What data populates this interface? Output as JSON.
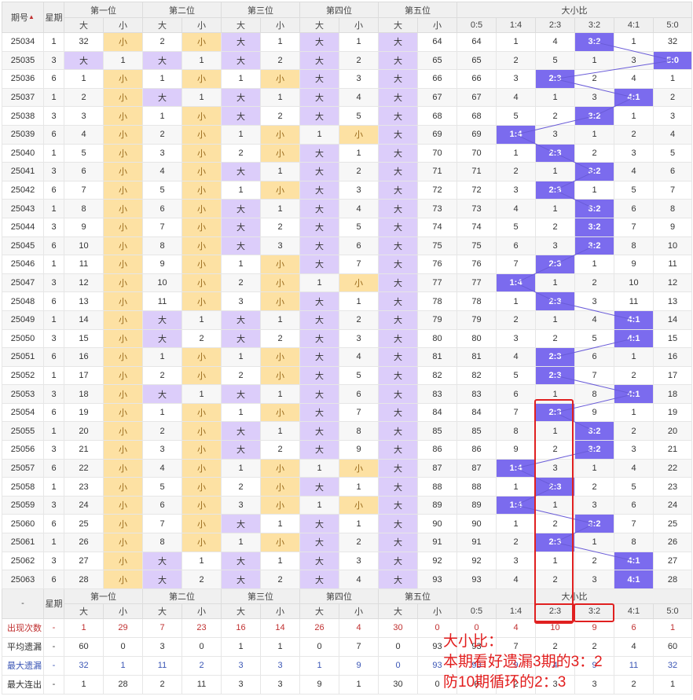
{
  "header": {
    "period": "期号",
    "weekday": "星期",
    "pos1": "第一位",
    "pos2": "第二位",
    "pos3": "第三位",
    "pos4": "第四位",
    "pos5": "第五位",
    "ratio": "大小比",
    "big": "大",
    "small": "小",
    "ratios": [
      "0:5",
      "1:4",
      "2:3",
      "3:2",
      "4:1",
      "5:0"
    ]
  },
  "rows": [
    {
      "p": "25034",
      "w": "1",
      "c": [
        {
          "big": "32",
          "small": "小"
        },
        {
          "big": "2",
          "small": "小"
        },
        {
          "big": "大",
          "small": "1"
        },
        {
          "big": "大",
          "small": "1"
        },
        {
          "big": "大",
          "small": "64"
        }
      ],
      "r": [
        "64",
        "1",
        "4",
        "3:2",
        "1",
        "32"
      ],
      "hit": 3
    },
    {
      "p": "25035",
      "w": "3",
      "c": [
        {
          "big": "大",
          "small": "1"
        },
        {
          "big": "大",
          "small": "1"
        },
        {
          "big": "大",
          "small": "2"
        },
        {
          "big": "大",
          "small": "2"
        },
        {
          "big": "大",
          "small": "65"
        }
      ],
      "r": [
        "65",
        "2",
        "5",
        "1",
        "3",
        "5:0"
      ],
      "hit": 5
    },
    {
      "p": "25036",
      "w": "6",
      "c": [
        {
          "big": "1",
          "small": "小"
        },
        {
          "big": "1",
          "small": "小"
        },
        {
          "big": "1",
          "small": "小"
        },
        {
          "big": "大",
          "small": "3"
        },
        {
          "big": "大",
          "small": "66"
        }
      ],
      "r": [
        "66",
        "3",
        "2:3",
        "2",
        "4",
        "1"
      ],
      "hit": 2
    },
    {
      "p": "25037",
      "w": "1",
      "c": [
        {
          "big": "2",
          "small": "小"
        },
        {
          "big": "大",
          "small": "1"
        },
        {
          "big": "大",
          "small": "1"
        },
        {
          "big": "大",
          "small": "4"
        },
        {
          "big": "大",
          "small": "67"
        }
      ],
      "r": [
        "67",
        "4",
        "1",
        "3",
        "4:1",
        "2"
      ],
      "hit": 4
    },
    {
      "p": "25038",
      "w": "3",
      "c": [
        {
          "big": "3",
          "small": "小"
        },
        {
          "big": "1",
          "small": "小"
        },
        {
          "big": "大",
          "small": "2"
        },
        {
          "big": "大",
          "small": "5"
        },
        {
          "big": "大",
          "small": "68"
        }
      ],
      "r": [
        "68",
        "5",
        "2",
        "3:2",
        "1",
        "3"
      ],
      "hit": 3
    },
    {
      "p": "25039",
      "w": "6",
      "c": [
        {
          "big": "4",
          "small": "小"
        },
        {
          "big": "2",
          "small": "小"
        },
        {
          "big": "1",
          "small": "小"
        },
        {
          "big": "1",
          "small": "小"
        },
        {
          "big": "大",
          "small": "69"
        }
      ],
      "r": [
        "69",
        "1:4",
        "3",
        "1",
        "2",
        "4"
      ],
      "hit": 1
    },
    {
      "p": "25040",
      "w": "1",
      "c": [
        {
          "big": "5",
          "small": "小"
        },
        {
          "big": "3",
          "small": "小"
        },
        {
          "big": "2",
          "small": "小"
        },
        {
          "big": "大",
          "small": "1"
        },
        {
          "big": "大",
          "small": "70"
        }
      ],
      "r": [
        "70",
        "1",
        "2:3",
        "2",
        "3",
        "5"
      ],
      "hit": 2
    },
    {
      "p": "25041",
      "w": "3",
      "c": [
        {
          "big": "6",
          "small": "小"
        },
        {
          "big": "4",
          "small": "小"
        },
        {
          "big": "大",
          "small": "1"
        },
        {
          "big": "大",
          "small": "2"
        },
        {
          "big": "大",
          "small": "71"
        }
      ],
      "r": [
        "71",
        "2",
        "1",
        "3:2",
        "4",
        "6"
      ],
      "hit": 3
    },
    {
      "p": "25042",
      "w": "6",
      "c": [
        {
          "big": "7",
          "small": "小"
        },
        {
          "big": "5",
          "small": "小"
        },
        {
          "big": "1",
          "small": "小"
        },
        {
          "big": "大",
          "small": "3"
        },
        {
          "big": "大",
          "small": "72"
        }
      ],
      "r": [
        "72",
        "3",
        "2:3",
        "1",
        "5",
        "7"
      ],
      "hit": 2
    },
    {
      "p": "25043",
      "w": "1",
      "c": [
        {
          "big": "8",
          "small": "小"
        },
        {
          "big": "6",
          "small": "小"
        },
        {
          "big": "大",
          "small": "1"
        },
        {
          "big": "大",
          "small": "4"
        },
        {
          "big": "大",
          "small": "73"
        }
      ],
      "r": [
        "73",
        "4",
        "1",
        "3:2",
        "6",
        "8"
      ],
      "hit": 3
    },
    {
      "p": "25044",
      "w": "3",
      "c": [
        {
          "big": "9",
          "small": "小"
        },
        {
          "big": "7",
          "small": "小"
        },
        {
          "big": "大",
          "small": "2"
        },
        {
          "big": "大",
          "small": "5"
        },
        {
          "big": "大",
          "small": "74"
        }
      ],
      "r": [
        "74",
        "5",
        "2",
        "3:2",
        "7",
        "9"
      ],
      "hit": 3
    },
    {
      "p": "25045",
      "w": "6",
      "c": [
        {
          "big": "10",
          "small": "小"
        },
        {
          "big": "8",
          "small": "小"
        },
        {
          "big": "大",
          "small": "3"
        },
        {
          "big": "大",
          "small": "6"
        },
        {
          "big": "大",
          "small": "75"
        }
      ],
      "r": [
        "75",
        "6",
        "3",
        "3:2",
        "8",
        "10"
      ],
      "hit": 3
    },
    {
      "p": "25046",
      "w": "1",
      "c": [
        {
          "big": "11",
          "small": "小"
        },
        {
          "big": "9",
          "small": "小"
        },
        {
          "big": "1",
          "small": "小"
        },
        {
          "big": "大",
          "small": "7"
        },
        {
          "big": "大",
          "small": "76"
        }
      ],
      "r": [
        "76",
        "7",
        "2:3",
        "1",
        "9",
        "11"
      ],
      "hit": 2
    },
    {
      "p": "25047",
      "w": "3",
      "c": [
        {
          "big": "12",
          "small": "小"
        },
        {
          "big": "10",
          "small": "小"
        },
        {
          "big": "2",
          "small": "小"
        },
        {
          "big": "1",
          "small": "小"
        },
        {
          "big": "大",
          "small": "77"
        }
      ],
      "r": [
        "77",
        "1:4",
        "1",
        "2",
        "10",
        "12"
      ],
      "hit": 1
    },
    {
      "p": "25048",
      "w": "6",
      "c": [
        {
          "big": "13",
          "small": "小"
        },
        {
          "big": "11",
          "small": "小"
        },
        {
          "big": "3",
          "small": "小"
        },
        {
          "big": "大",
          "small": "1"
        },
        {
          "big": "大",
          "small": "78"
        }
      ],
      "r": [
        "78",
        "1",
        "2:3",
        "3",
        "11",
        "13"
      ],
      "hit": 2
    },
    {
      "p": "25049",
      "w": "1",
      "c": [
        {
          "big": "14",
          "small": "小"
        },
        {
          "big": "大",
          "small": "1"
        },
        {
          "big": "大",
          "small": "1"
        },
        {
          "big": "大",
          "small": "2"
        },
        {
          "big": "大",
          "small": "79"
        }
      ],
      "r": [
        "79",
        "2",
        "1",
        "4",
        "4:1",
        "14"
      ],
      "hit": 4
    },
    {
      "p": "25050",
      "w": "3",
      "c": [
        {
          "big": "15",
          "small": "小"
        },
        {
          "big": "大",
          "small": "2"
        },
        {
          "big": "大",
          "small": "2"
        },
        {
          "big": "大",
          "small": "3"
        },
        {
          "big": "大",
          "small": "80"
        }
      ],
      "r": [
        "80",
        "3",
        "2",
        "5",
        "4:1",
        "15"
      ],
      "hit": 4
    },
    {
      "p": "25051",
      "w": "6",
      "c": [
        {
          "big": "16",
          "small": "小"
        },
        {
          "big": "1",
          "small": "小"
        },
        {
          "big": "1",
          "small": "小"
        },
        {
          "big": "大",
          "small": "4"
        },
        {
          "big": "大",
          "small": "81"
        }
      ],
      "r": [
        "81",
        "4",
        "2:3",
        "6",
        "1",
        "16"
      ],
      "hit": 2
    },
    {
      "p": "25052",
      "w": "1",
      "c": [
        {
          "big": "17",
          "small": "小"
        },
        {
          "big": "2",
          "small": "小"
        },
        {
          "big": "2",
          "small": "小"
        },
        {
          "big": "大",
          "small": "5"
        },
        {
          "big": "大",
          "small": "82"
        }
      ],
      "r": [
        "82",
        "5",
        "2:3",
        "7",
        "2",
        "17"
      ],
      "hit": 2
    },
    {
      "p": "25053",
      "w": "3",
      "c": [
        {
          "big": "18",
          "small": "小"
        },
        {
          "big": "大",
          "small": "1"
        },
        {
          "big": "大",
          "small": "1"
        },
        {
          "big": "大",
          "small": "6"
        },
        {
          "big": "大",
          "small": "83"
        }
      ],
      "r": [
        "83",
        "6",
        "1",
        "8",
        "4:1",
        "18"
      ],
      "hit": 4
    },
    {
      "p": "25054",
      "w": "6",
      "c": [
        {
          "big": "19",
          "small": "小"
        },
        {
          "big": "1",
          "small": "小"
        },
        {
          "big": "1",
          "small": "小"
        },
        {
          "big": "大",
          "small": "7"
        },
        {
          "big": "大",
          "small": "84"
        }
      ],
      "r": [
        "84",
        "7",
        "2:3",
        "9",
        "1",
        "19"
      ],
      "hit": 2
    },
    {
      "p": "25055",
      "w": "1",
      "c": [
        {
          "big": "20",
          "small": "小"
        },
        {
          "big": "2",
          "small": "小"
        },
        {
          "big": "大",
          "small": "1"
        },
        {
          "big": "大",
          "small": "8"
        },
        {
          "big": "大",
          "small": "85"
        }
      ],
      "r": [
        "85",
        "8",
        "1",
        "3:2",
        "2",
        "20"
      ],
      "hit": 3
    },
    {
      "p": "25056",
      "w": "3",
      "c": [
        {
          "big": "21",
          "small": "小"
        },
        {
          "big": "3",
          "small": "小"
        },
        {
          "big": "大",
          "small": "2"
        },
        {
          "big": "大",
          "small": "9"
        },
        {
          "big": "大",
          "small": "86"
        }
      ],
      "r": [
        "86",
        "9",
        "2",
        "3:2",
        "3",
        "21"
      ],
      "hit": 3
    },
    {
      "p": "25057",
      "w": "6",
      "c": [
        {
          "big": "22",
          "small": "小"
        },
        {
          "big": "4",
          "small": "小"
        },
        {
          "big": "1",
          "small": "小"
        },
        {
          "big": "1",
          "small": "小"
        },
        {
          "big": "大",
          "small": "87"
        }
      ],
      "r": [
        "87",
        "1:4",
        "3",
        "1",
        "4",
        "22"
      ],
      "hit": 1
    },
    {
      "p": "25058",
      "w": "1",
      "c": [
        {
          "big": "23",
          "small": "小"
        },
        {
          "big": "5",
          "small": "小"
        },
        {
          "big": "2",
          "small": "小"
        },
        {
          "big": "大",
          "small": "1"
        },
        {
          "big": "大",
          "small": "88"
        }
      ],
      "r": [
        "88",
        "1",
        "2:3",
        "2",
        "5",
        "23"
      ],
      "hit": 2
    },
    {
      "p": "25059",
      "w": "3",
      "c": [
        {
          "big": "24",
          "small": "小"
        },
        {
          "big": "6",
          "small": "小"
        },
        {
          "big": "3",
          "small": "小"
        },
        {
          "big": "1",
          "small": "小"
        },
        {
          "big": "大",
          "small": "89"
        }
      ],
      "r": [
        "89",
        "1:4",
        "1",
        "3",
        "6",
        "24"
      ],
      "hit": 1
    },
    {
      "p": "25060",
      "w": "6",
      "c": [
        {
          "big": "25",
          "small": "小"
        },
        {
          "big": "7",
          "small": "小"
        },
        {
          "big": "大",
          "small": "1"
        },
        {
          "big": "大",
          "small": "1"
        },
        {
          "big": "大",
          "small": "90"
        }
      ],
      "r": [
        "90",
        "1",
        "2",
        "3:2",
        "7",
        "25"
      ],
      "hit": 3
    },
    {
      "p": "25061",
      "w": "1",
      "c": [
        {
          "big": "26",
          "small": "小"
        },
        {
          "big": "8",
          "small": "小"
        },
        {
          "big": "1",
          "small": "小"
        },
        {
          "big": "大",
          "small": "2"
        },
        {
          "big": "大",
          "small": "91"
        }
      ],
      "r": [
        "91",
        "2",
        "2:3",
        "1",
        "8",
        "26"
      ],
      "hit": 2
    },
    {
      "p": "25062",
      "w": "3",
      "c": [
        {
          "big": "27",
          "small": "小"
        },
        {
          "big": "大",
          "small": "1"
        },
        {
          "big": "大",
          "small": "1"
        },
        {
          "big": "大",
          "small": "3"
        },
        {
          "big": "大",
          "small": "92"
        }
      ],
      "r": [
        "92",
        "3",
        "1",
        "2",
        "4:1",
        "27"
      ],
      "hit": 4
    },
    {
      "p": "25063",
      "w": "6",
      "c": [
        {
          "big": "28",
          "small": "小"
        },
        {
          "big": "大",
          "small": "2"
        },
        {
          "big": "大",
          "small": "2"
        },
        {
          "big": "大",
          "small": "4"
        },
        {
          "big": "大",
          "small": "93"
        }
      ],
      "r": [
        "93",
        "4",
        "2",
        "3",
        "4:1",
        "28"
      ],
      "hit": 4
    }
  ],
  "footer_dash": "-",
  "stats": [
    {
      "label": "出现次数",
      "cls": "lbl-red",
      "v": [
        "-",
        "1",
        "29",
        "7",
        "23",
        "16",
        "14",
        "26",
        "4",
        "30",
        "0",
        "0",
        "4",
        "10",
        "9",
        "6",
        "1"
      ]
    },
    {
      "label": "平均遗漏",
      "cls": "lbl-dark",
      "v": [
        "-",
        "60",
        "0",
        "3",
        "0",
        "1",
        "1",
        "0",
        "7",
        "0",
        "93",
        "93",
        "7",
        "2",
        "2",
        "4",
        "60"
      ]
    },
    {
      "label": "最大遗漏",
      "cls": "lbl-blue",
      "v": [
        "-",
        "32",
        "1",
        "11",
        "2",
        "3",
        "3",
        "1",
        "9",
        "0",
        "93",
        "93",
        "9",
        "4",
        "9",
        "11",
        "32"
      ]
    },
    {
      "label": "最大连出",
      "cls": "lbl-dark",
      "v": [
        "-",
        "1",
        "28",
        "2",
        "11",
        "3",
        "3",
        "9",
        "1",
        "30",
        "0",
        "0",
        "2",
        "3",
        "3",
        "2",
        "1"
      ]
    }
  ],
  "annotation": {
    "line1": "大小比：",
    "line2": "本期看好遗漏3期的3：2",
    "line3": "防10期循环的2：3"
  },
  "colors": {
    "big_bg": "#dccdfa",
    "small_bg": "#fde1a3",
    "hit_bg": "#7b6bee",
    "red": "#e21d1d"
  }
}
